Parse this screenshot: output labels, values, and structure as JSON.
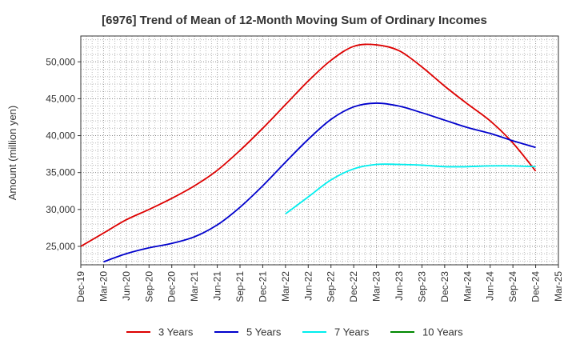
{
  "chart_data": {
    "type": "line",
    "title": "[6976]  Trend of Mean of 12-Month Moving Sum of Ordinary Incomes",
    "xlabel": "",
    "ylabel": "Amount (million yen)",
    "ylim": [
      22500,
      53500
    ],
    "yticks": [
      25000,
      30000,
      35000,
      40000,
      45000,
      50000
    ],
    "ytick_labels": [
      "25,000",
      "30,000",
      "35,000",
      "40,000",
      "45,000",
      "50,000"
    ],
    "categories": [
      "Dec-19",
      "Mar-20",
      "Jun-20",
      "Sep-20",
      "Dec-20",
      "Mar-21",
      "Jun-21",
      "Sep-21",
      "Dec-21",
      "Mar-22",
      "Jun-22",
      "Sep-22",
      "Dec-22",
      "Mar-23",
      "Jun-23",
      "Sep-23",
      "Dec-23",
      "Mar-24",
      "Jun-24",
      "Sep-24",
      "Dec-24",
      "Mar-25"
    ],
    "grid": true,
    "legend_position": "bottom",
    "series": [
      {
        "name": "3 Years",
        "color": "#dd0000",
        "values": [
          25000,
          26800,
          28600,
          30000,
          31500,
          33200,
          35300,
          38000,
          41000,
          44200,
          47400,
          50200,
          52100,
          52300,
          51500,
          49300,
          46700,
          44300,
          42000,
          39000,
          35200,
          null
        ]
      },
      {
        "name": "5 Years",
        "color": "#0000cc",
        "values": [
          null,
          22900,
          24000,
          24800,
          25400,
          26300,
          27900,
          30300,
          33200,
          36400,
          39500,
          42200,
          43900,
          44400,
          44000,
          43100,
          42100,
          41100,
          40300,
          39300,
          38400,
          null
        ]
      },
      {
        "name": "7 Years",
        "color": "#00eeee",
        "values": [
          null,
          null,
          null,
          null,
          null,
          null,
          null,
          null,
          null,
          29400,
          31700,
          34000,
          35500,
          36100,
          36100,
          36000,
          35800,
          35800,
          35900,
          35900,
          35800,
          null
        ]
      },
      {
        "name": "10 Years",
        "color": "#008800",
        "values": [
          null,
          null,
          null,
          null,
          null,
          null,
          null,
          null,
          null,
          null,
          null,
          null,
          null,
          null,
          null,
          null,
          null,
          null,
          null,
          null,
          null,
          null
        ]
      }
    ]
  }
}
